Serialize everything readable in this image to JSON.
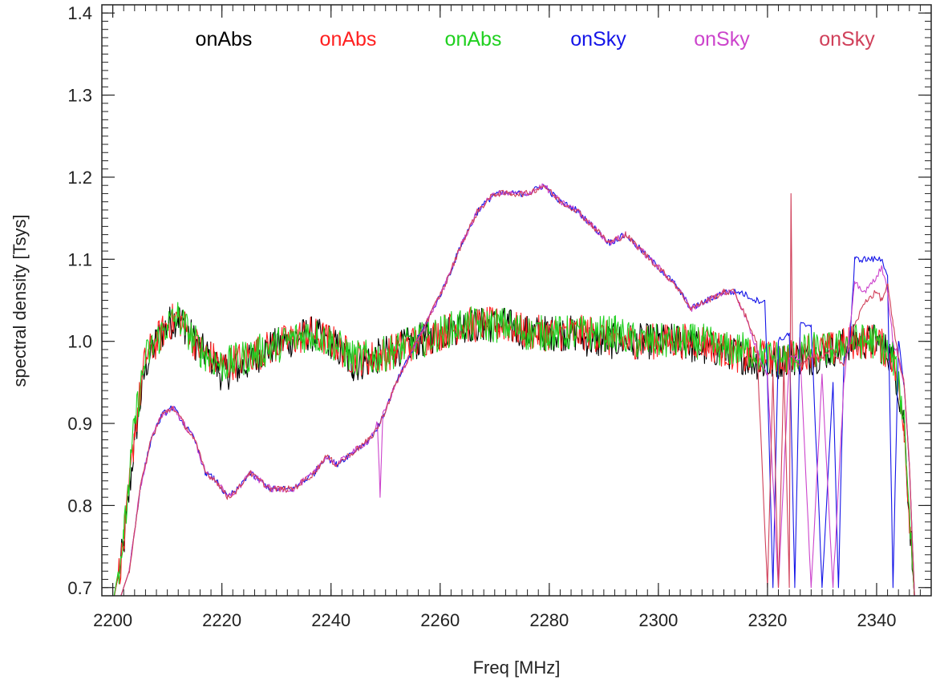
{
  "chart_data": {
    "type": "line",
    "title": "",
    "xlabel": "Freq [MHz]",
    "ylabel": "spectral density [Tsys]",
    "xlim": [
      2198,
      2350
    ],
    "ylim": [
      0.69,
      1.41
    ],
    "x_ticks": [
      2200,
      2220,
      2240,
      2260,
      2280,
      2300,
      2320,
      2340
    ],
    "x_tick_labels": [
      "2200",
      "2220",
      "2240",
      "2260",
      "2280",
      "2300",
      "2320",
      "2340"
    ],
    "y_ticks": [
      0.7,
      0.8,
      0.9,
      1.0,
      1.1,
      1.2,
      1.3,
      1.4
    ],
    "y_tick_labels": [
      "0.7",
      "0.8",
      "0.9",
      "1.0",
      "1.1",
      "1.2",
      "1.3",
      "1.4"
    ],
    "grid": false,
    "legend_position": "top",
    "legend": [
      {
        "label": "onAbs",
        "color": "#000000"
      },
      {
        "label": "onAbs",
        "color": "#ff2020"
      },
      {
        "label": "onAbs",
        "color": "#1fd01f"
      },
      {
        "label": "onSky",
        "color": "#1515e8"
      },
      {
        "label": "onSky",
        "color": "#cc44cc"
      },
      {
        "label": "onSky",
        "color": "#d0405a"
      }
    ],
    "series": [
      {
        "label": "onAbs",
        "color": "#000000",
        "kind": "abs",
        "x": [
          2200,
          2202,
          2204,
          2206,
          2208,
          2210,
          2212,
          2214,
          2216,
          2218,
          2220,
          2224,
          2228,
          2232,
          2236,
          2240,
          2244,
          2248,
          2252,
          2256,
          2260,
          2264,
          2268,
          2272,
          2276,
          2280,
          2284,
          2288,
          2292,
          2296,
          2300,
          2304,
          2308,
          2312,
          2316,
          2320,
          2324,
          2328,
          2332,
          2336,
          2340,
          2343,
          2345,
          2347
        ],
        "y": [
          0.68,
          0.75,
          0.88,
          0.97,
          1.0,
          1.02,
          1.03,
          1.01,
          0.99,
          0.98,
          0.96,
          0.97,
          0.99,
          1.0,
          1.01,
          1.0,
          0.97,
          0.98,
          0.99,
          1.0,
          1.01,
          1.02,
          1.02,
          1.02,
          1.01,
          1.01,
          1.01,
          1.0,
          1.0,
          1.0,
          1.0,
          1.0,
          0.99,
          0.99,
          0.98,
          0.97,
          0.98,
          0.98,
          0.99,
          1.0,
          1.0,
          0.98,
          0.9,
          0.68
        ]
      },
      {
        "label": "onAbs",
        "color": "#ff2020",
        "kind": "abs",
        "x": [
          2200,
          2202,
          2204,
          2206,
          2208,
          2210,
          2212,
          2214,
          2216,
          2218,
          2220,
          2224,
          2228,
          2232,
          2236,
          2240,
          2244,
          2248,
          2252,
          2256,
          2260,
          2264,
          2268,
          2272,
          2276,
          2280,
          2284,
          2288,
          2292,
          2296,
          2300,
          2304,
          2308,
          2312,
          2316,
          2320,
          2324,
          2328,
          2332,
          2336,
          2340,
          2343,
          2345,
          2347
        ],
        "y": [
          0.68,
          0.75,
          0.89,
          0.98,
          1.0,
          1.02,
          1.03,
          1.01,
          0.99,
          0.98,
          0.97,
          0.98,
          0.99,
          1.0,
          1.01,
          1.0,
          0.98,
          0.98,
          0.99,
          1.0,
          1.01,
          1.02,
          1.02,
          1.02,
          1.01,
          1.01,
          1.01,
          1.01,
          1.0,
          1.0,
          1.0,
          1.0,
          1.0,
          0.99,
          0.98,
          0.98,
          0.98,
          0.99,
          0.99,
          1.0,
          1.0,
          0.98,
          0.9,
          0.68
        ]
      },
      {
        "label": "onAbs",
        "color": "#1fd01f",
        "kind": "abs",
        "x": [
          2200,
          2202,
          2204,
          2206,
          2208,
          2210,
          2212,
          2214,
          2216,
          2218,
          2220,
          2224,
          2228,
          2232,
          2236,
          2240,
          2244,
          2248,
          2252,
          2256,
          2260,
          2264,
          2268,
          2272,
          2276,
          2280,
          2284,
          2288,
          2292,
          2296,
          2300,
          2304,
          2308,
          2312,
          2316,
          2320,
          2324,
          2328,
          2332,
          2336,
          2340,
          2343,
          2345,
          2347
        ],
        "y": [
          0.68,
          0.76,
          0.9,
          0.98,
          1.0,
          1.02,
          1.03,
          1.01,
          0.99,
          0.98,
          0.97,
          0.98,
          0.99,
          1.0,
          1.01,
          1.0,
          0.98,
          0.98,
          0.99,
          1.0,
          1.01,
          1.02,
          1.02,
          1.02,
          1.01,
          1.01,
          1.01,
          1.01,
          1.01,
          1.0,
          1.0,
          1.0,
          1.0,
          0.99,
          0.99,
          0.98,
          0.98,
          0.99,
          0.99,
          1.0,
          1.0,
          0.98,
          0.91,
          0.68
        ]
      },
      {
        "label": "onSky",
        "color": "#1515e8",
        "kind": "sky",
        "x": [
          2201,
          2203,
          2205,
          2207,
          2209,
          2211,
          2213,
          2215,
          2217,
          2219,
          2221,
          2223,
          2225,
          2227,
          2229,
          2231,
          2233,
          2235,
          2237,
          2239,
          2241,
          2243,
          2245,
          2247,
          2249,
          2252,
          2255,
          2258,
          2261,
          2264,
          2267,
          2270,
          2273,
          2276,
          2279,
          2282,
          2285,
          2288,
          2291,
          2294,
          2297,
          2300,
          2303,
          2306,
          2309,
          2312,
          2315,
          2318,
          2319.5,
          2320,
          2321,
          2322,
          2324,
          2325,
          2326,
          2328,
          2330,
          2332,
          2333,
          2334,
          2335,
          2336,
          2338,
          2340,
          2341,
          2342,
          2343,
          2344,
          2345,
          2346,
          2347
        ],
        "y": [
          0.68,
          0.72,
          0.82,
          0.88,
          0.91,
          0.92,
          0.9,
          0.88,
          0.84,
          0.83,
          0.81,
          0.82,
          0.84,
          0.83,
          0.82,
          0.82,
          0.82,
          0.83,
          0.84,
          0.86,
          0.85,
          0.86,
          0.87,
          0.88,
          0.9,
          0.95,
          0.99,
          1.03,
          1.07,
          1.12,
          1.16,
          1.18,
          1.18,
          1.18,
          1.19,
          1.17,
          1.16,
          1.14,
          1.12,
          1.13,
          1.11,
          1.09,
          1.07,
          1.04,
          1.05,
          1.06,
          1.06,
          1.05,
          1.05,
          0.95,
          0.7,
          1.0,
          1.01,
          0.7,
          1.02,
          1.02,
          0.7,
          0.95,
          0.7,
          0.98,
          0.99,
          1.1,
          1.1,
          1.1,
          1.1,
          1.08,
          0.7,
          1.0,
          0.95,
          0.85,
          0.68
        ]
      },
      {
        "label": "onSky",
        "color": "#cc44cc",
        "kind": "sky",
        "x": [
          2201,
          2203,
          2205,
          2207,
          2209,
          2211,
          2213,
          2215,
          2217,
          2219,
          2221,
          2223,
          2225,
          2227,
          2229,
          2231,
          2233,
          2235,
          2237,
          2239,
          2241,
          2243,
          2245,
          2247,
          2248.5,
          2249,
          2249.5,
          2252,
          2255,
          2258,
          2261,
          2264,
          2267,
          2270,
          2273,
          2276,
          2279,
          2282,
          2285,
          2288,
          2291,
          2294,
          2297,
          2300,
          2303,
          2306,
          2309,
          2312,
          2314,
          2316,
          2318,
          2320,
          2322,
          2324,
          2326,
          2328,
          2330,
          2332,
          2334,
          2336,
          2338,
          2340,
          2341,
          2342,
          2343,
          2344,
          2345,
          2346,
          2347
        ],
        "y": [
          0.68,
          0.72,
          0.82,
          0.88,
          0.91,
          0.92,
          0.9,
          0.88,
          0.84,
          0.83,
          0.81,
          0.82,
          0.84,
          0.83,
          0.82,
          0.82,
          0.82,
          0.83,
          0.84,
          0.86,
          0.85,
          0.86,
          0.87,
          0.88,
          0.9,
          0.81,
          0.91,
          0.95,
          0.99,
          1.03,
          1.07,
          1.12,
          1.16,
          1.18,
          1.18,
          1.18,
          1.19,
          1.17,
          1.16,
          1.14,
          1.12,
          1.13,
          1.11,
          1.09,
          1.07,
          1.04,
          1.05,
          1.06,
          1.06,
          1.03,
          0.99,
          0.96,
          0.7,
          0.98,
          0.98,
          0.7,
          0.96,
          0.7,
          0.95,
          1.07,
          1.06,
          1.08,
          1.09,
          1.06,
          1.0,
          0.98,
          0.95,
          0.85,
          0.68
        ]
      },
      {
        "label": "onSky",
        "color": "#d0405a",
        "kind": "sky",
        "x": [
          2201,
          2203,
          2205,
          2207,
          2209,
          2211,
          2213,
          2215,
          2217,
          2219,
          2221,
          2223,
          2225,
          2227,
          2229,
          2231,
          2233,
          2235,
          2237,
          2239,
          2241,
          2243,
          2245,
          2247,
          2249,
          2252,
          2255,
          2258,
          2261,
          2264,
          2267,
          2270,
          2273,
          2276,
          2279,
          2282,
          2285,
          2288,
          2291,
          2294,
          2297,
          2300,
          2303,
          2306,
          2309,
          2312,
          2314,
          2316,
          2318,
          2320,
          2321,
          2322,
          2323,
          2324,
          2324.3,
          2324.6,
          2326,
          2328,
          2330,
          2332,
          2334,
          2336,
          2338,
          2340,
          2341,
          2342,
          2343,
          2344,
          2345,
          2346,
          2347
        ],
        "y": [
          0.68,
          0.72,
          0.82,
          0.88,
          0.91,
          0.92,
          0.9,
          0.88,
          0.84,
          0.83,
          0.81,
          0.82,
          0.84,
          0.83,
          0.82,
          0.82,
          0.82,
          0.83,
          0.84,
          0.86,
          0.85,
          0.86,
          0.87,
          0.88,
          0.9,
          0.95,
          0.99,
          1.03,
          1.07,
          1.12,
          1.16,
          1.18,
          1.18,
          1.18,
          1.19,
          1.17,
          1.16,
          1.14,
          1.12,
          1.13,
          1.11,
          1.09,
          1.07,
          1.04,
          1.05,
          1.06,
          1.06,
          1.03,
          1.0,
          0.7,
          0.96,
          0.7,
          0.97,
          0.7,
          1.18,
          0.98,
          0.97,
          0.98,
          0.98,
          0.99,
          0.97,
          1.02,
          1.05,
          1.06,
          1.05,
          1.07,
          1.02,
          0.98,
          0.95,
          0.85,
          0.68
        ]
      }
    ]
  }
}
